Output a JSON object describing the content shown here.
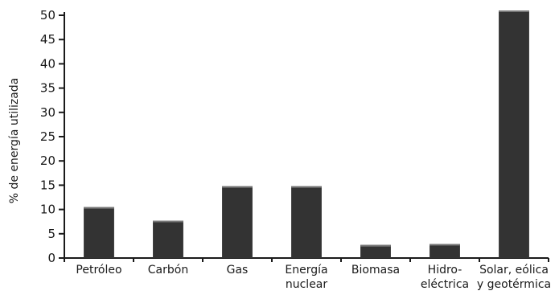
{
  "chart_data": {
    "type": "bar",
    "ylabel": "% de energía utilizada",
    "xlabel": "",
    "title": "",
    "ylim": [
      0,
      50
    ],
    "yticks": [
      0,
      5,
      10,
      15,
      20,
      25,
      30,
      35,
      40,
      45,
      50
    ],
    "categories": [
      [
        "Petróleo"
      ],
      [
        "Carbón"
      ],
      [
        "Gas"
      ],
      [
        "Energía",
        "nuclear"
      ],
      [
        "Biomasa"
      ],
      [
        "Hidro-",
        "eléctrica"
      ],
      [
        "Solar, eólica",
        "y geotérmica"
      ]
    ],
    "values": [
      10.5,
      7.7,
      14.8,
      14.8,
      2.7,
      2.9,
      51
    ],
    "grid": false,
    "bar_color": "#333333"
  }
}
